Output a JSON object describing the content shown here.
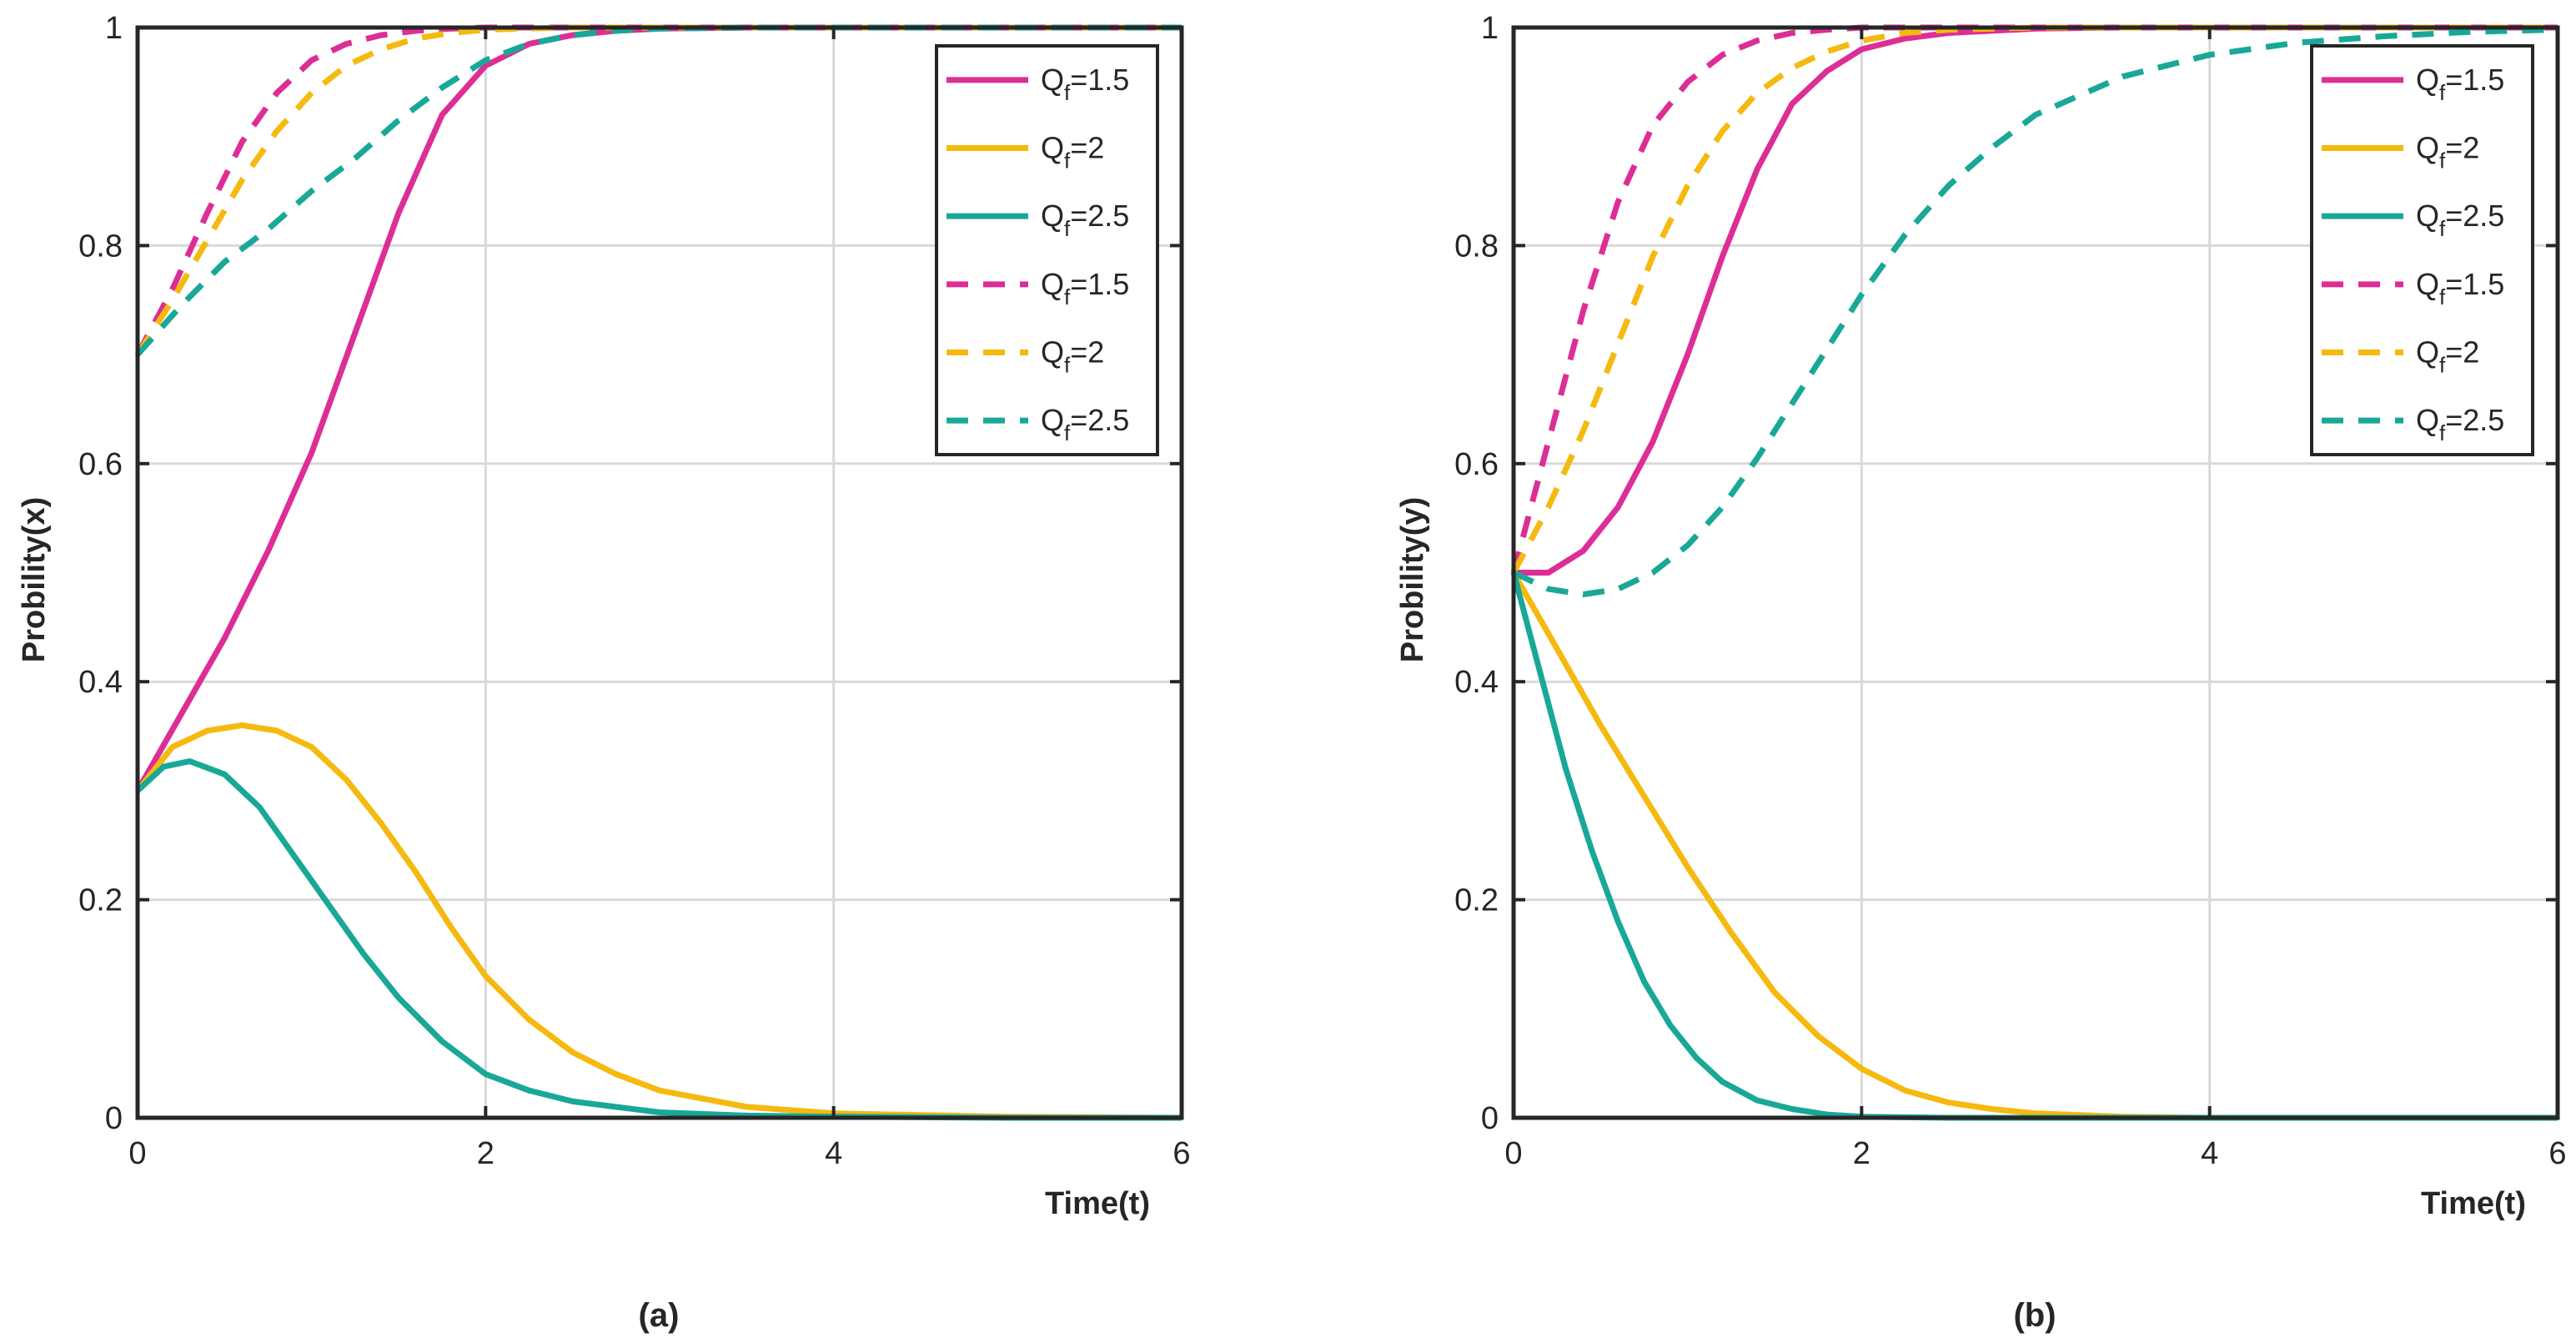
{
  "colors": {
    "magenta": "#dc2e96",
    "gold": "#f5b90f",
    "teal": "#19a897",
    "grid": "#d9d9d9",
    "axis": "#262626"
  },
  "chart_data": [
    {
      "type": "line",
      "caption": "(a)",
      "xlabel": "Time(t)",
      "ylabel": "Probility(x)",
      "xlim": [
        0,
        6
      ],
      "ylim": [
        0,
        1
      ],
      "xticks": [
        "0",
        "2",
        "4",
        "6"
      ],
      "yticks": [
        "0",
        "0.2",
        "0.4",
        "0.6",
        "0.8",
        "1"
      ],
      "grid": true,
      "legend_position": "top-right",
      "series": [
        {
          "name": "Q_f=1.5",
          "label_main": "Q",
          "label_sub": "f",
          "label_rest": "=1.5",
          "color": "#dc2e96",
          "dash": "solid",
          "x": [
            0,
            0.25,
            0.5,
            0.75,
            1.0,
            1.25,
            1.5,
            1.75,
            2.0,
            2.25,
            2.5,
            2.75,
            3.0,
            3.5,
            4.0,
            5.0,
            6.0
          ],
          "y": [
            0.3,
            0.37,
            0.44,
            0.52,
            0.61,
            0.72,
            0.83,
            0.92,
            0.965,
            0.985,
            0.993,
            0.997,
            0.999,
            1.0,
            1.0,
            1.0,
            1.0
          ]
        },
        {
          "name": "Q_f=2",
          "label_main": "Q",
          "label_sub": "f",
          "label_rest": "=2",
          "color": "#f5b90f",
          "dash": "solid",
          "x": [
            0,
            0.2,
            0.4,
            0.6,
            0.8,
            1.0,
            1.2,
            1.4,
            1.6,
            1.8,
            2.0,
            2.25,
            2.5,
            2.75,
            3.0,
            3.5,
            4.0,
            5.0,
            6.0
          ],
          "y": [
            0.3,
            0.34,
            0.355,
            0.36,
            0.355,
            0.34,
            0.31,
            0.27,
            0.225,
            0.175,
            0.13,
            0.09,
            0.06,
            0.04,
            0.025,
            0.01,
            0.004,
            0.001,
            0.0
          ]
        },
        {
          "name": "Q_f=2.5",
          "label_main": "Q",
          "label_sub": "f",
          "label_rest": "=2.5",
          "color": "#19a897",
          "dash": "solid",
          "x": [
            0,
            0.15,
            0.3,
            0.5,
            0.7,
            0.9,
            1.1,
            1.3,
            1.5,
            1.75,
            2.0,
            2.25,
            2.5,
            3.0,
            3.5,
            4.0,
            5.0,
            6.0
          ],
          "y": [
            0.3,
            0.322,
            0.327,
            0.315,
            0.285,
            0.24,
            0.195,
            0.15,
            0.11,
            0.07,
            0.04,
            0.025,
            0.015,
            0.005,
            0.002,
            0.001,
            0.0,
            0.0
          ]
        },
        {
          "name": "Q_f=1.5 (dashed)",
          "label_main": "Q",
          "label_sub": "f",
          "label_rest": "=1.5",
          "color": "#dc2e96",
          "dash": "dashed",
          "x": [
            0,
            0.2,
            0.4,
            0.6,
            0.8,
            1.0,
            1.2,
            1.4,
            1.6,
            1.8,
            2.0,
            2.5,
            3.0,
            4.0,
            5.0,
            6.0
          ],
          "y": [
            0.7,
            0.76,
            0.83,
            0.895,
            0.94,
            0.97,
            0.985,
            0.993,
            0.997,
            0.999,
            1.0,
            1.0,
            1.0,
            1.0,
            1.0,
            1.0
          ]
        },
        {
          "name": "Q_f=2 (dashed)",
          "label_main": "Q",
          "label_sub": "f",
          "label_rest": "=2",
          "color": "#f5b90f",
          "dash": "dashed",
          "x": [
            0,
            0.2,
            0.4,
            0.6,
            0.8,
            1.0,
            1.2,
            1.4,
            1.6,
            1.8,
            2.0,
            2.2,
            2.5,
            3.0,
            4.0,
            5.0,
            6.0
          ],
          "y": [
            0.7,
            0.75,
            0.805,
            0.86,
            0.905,
            0.94,
            0.965,
            0.98,
            0.99,
            0.995,
            0.998,
            0.999,
            1.0,
            1.0,
            1.0,
            1.0,
            1.0
          ]
        },
        {
          "name": "Q_f=2.5 (dashed)",
          "label_main": "Q",
          "label_sub": "f",
          "label_rest": "=2.5",
          "color": "#19a897",
          "dash": "dashed",
          "x": [
            0,
            0.25,
            0.5,
            0.75,
            1.0,
            1.25,
            1.5,
            1.75,
            2.0,
            2.25,
            2.5,
            2.75,
            3.0,
            3.5,
            4.0,
            5.0,
            6.0
          ],
          "y": [
            0.7,
            0.745,
            0.785,
            0.815,
            0.85,
            0.88,
            0.915,
            0.945,
            0.97,
            0.985,
            0.993,
            0.997,
            0.999,
            1.0,
            1.0,
            1.0,
            1.0
          ]
        }
      ]
    },
    {
      "type": "line",
      "caption": "(b)",
      "xlabel": "Time(t)",
      "ylabel": "Probility(y)",
      "xlim": [
        0,
        6
      ],
      "ylim": [
        0,
        1
      ],
      "xticks": [
        "0",
        "2",
        "4",
        "6"
      ],
      "yticks": [
        "0",
        "0.2",
        "0.4",
        "0.6",
        "0.8",
        "1"
      ],
      "grid": true,
      "legend_position": "top-right",
      "series": [
        {
          "name": "Q_f=1.5",
          "label_main": "Q",
          "label_sub": "f",
          "label_rest": "=1.5",
          "color": "#dc2e96",
          "dash": "solid",
          "x": [
            0,
            0.2,
            0.4,
            0.6,
            0.8,
            1.0,
            1.2,
            1.4,
            1.6,
            1.8,
            2.0,
            2.25,
            2.5,
            3.0,
            3.5,
            4.0,
            5.0,
            6.0
          ],
          "y": [
            0.5,
            0.5,
            0.52,
            0.56,
            0.62,
            0.7,
            0.79,
            0.87,
            0.93,
            0.96,
            0.98,
            0.99,
            0.995,
            0.999,
            1.0,
            1.0,
            1.0,
            1.0
          ]
        },
        {
          "name": "Q_f=2",
          "label_main": "Q",
          "label_sub": "f",
          "label_rest": "=2",
          "color": "#f5b90f",
          "dash": "solid",
          "x": [
            0,
            0.25,
            0.5,
            0.75,
            1.0,
            1.25,
            1.5,
            1.75,
            2.0,
            2.25,
            2.5,
            2.75,
            3.0,
            3.5,
            4.0,
            5.0,
            6.0
          ],
          "y": [
            0.5,
            0.43,
            0.36,
            0.295,
            0.23,
            0.17,
            0.115,
            0.075,
            0.045,
            0.025,
            0.014,
            0.008,
            0.004,
            0.001,
            0.0,
            0.0,
            0.0
          ]
        },
        {
          "name": "Q_f=2.5",
          "label_main": "Q",
          "label_sub": "f",
          "label_rest": "=2.5",
          "color": "#19a897",
          "dash": "solid",
          "x": [
            0,
            0.15,
            0.3,
            0.45,
            0.6,
            0.75,
            0.9,
            1.05,
            1.2,
            1.4,
            1.6,
            1.8,
            2.0,
            2.5,
            3.0,
            4.0,
            5.0,
            6.0
          ],
          "y": [
            0.5,
            0.41,
            0.32,
            0.245,
            0.18,
            0.125,
            0.085,
            0.055,
            0.033,
            0.016,
            0.008,
            0.003,
            0.001,
            0.0,
            0.0,
            0.0,
            0.0,
            0.0
          ]
        },
        {
          "name": "Q_f=1.5 (dashed)",
          "label_main": "Q",
          "label_sub": "f",
          "label_rest": "=1.5",
          "color": "#dc2e96",
          "dash": "dashed",
          "x": [
            0,
            0.2,
            0.4,
            0.6,
            0.8,
            1.0,
            1.2,
            1.4,
            1.6,
            1.8,
            2.0,
            2.5,
            3.0,
            4.0,
            5.0,
            6.0
          ],
          "y": [
            0.5,
            0.62,
            0.74,
            0.84,
            0.91,
            0.95,
            0.975,
            0.988,
            0.995,
            0.998,
            1.0,
            1.0,
            1.0,
            1.0,
            1.0,
            1.0
          ]
        },
        {
          "name": "Q_f=2 (dashed)",
          "label_main": "Q",
          "label_sub": "f",
          "label_rest": "=2",
          "color": "#f5b90f",
          "dash": "dashed",
          "x": [
            0,
            0.2,
            0.4,
            0.6,
            0.8,
            1.0,
            1.2,
            1.4,
            1.6,
            1.8,
            2.0,
            2.25,
            2.5,
            3.0,
            4.0,
            5.0,
            6.0
          ],
          "y": [
            0.5,
            0.56,
            0.63,
            0.71,
            0.79,
            0.855,
            0.905,
            0.94,
            0.963,
            0.978,
            0.988,
            0.995,
            0.998,
            1.0,
            1.0,
            1.0,
            1.0
          ]
        },
        {
          "name": "Q_f=2.5 (dashed)",
          "label_main": "Q",
          "label_sub": "f",
          "label_rest": "=2.5",
          "color": "#19a897",
          "dash": "dashed",
          "x": [
            0,
            0.2,
            0.4,
            0.6,
            0.8,
            1.0,
            1.2,
            1.4,
            1.6,
            1.8,
            2.0,
            2.25,
            2.5,
            2.75,
            3.0,
            3.5,
            4.0,
            4.5,
            5.0,
            5.5,
            6.0
          ],
          "y": [
            0.5,
            0.485,
            0.48,
            0.485,
            0.5,
            0.525,
            0.56,
            0.605,
            0.655,
            0.705,
            0.755,
            0.81,
            0.855,
            0.89,
            0.92,
            0.955,
            0.975,
            0.986,
            0.992,
            0.996,
            0.998
          ]
        }
      ]
    }
  ]
}
